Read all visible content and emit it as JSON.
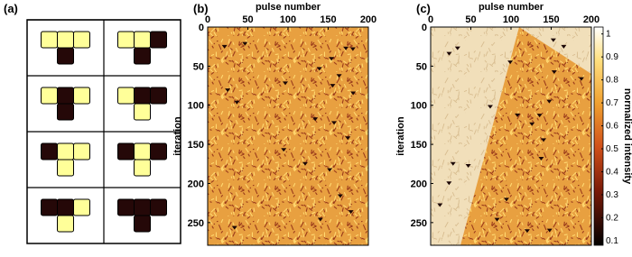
{
  "diagram": {
    "label": "(a)",
    "tiles": [
      [
        1,
        1,
        1,
        0
      ],
      [
        1,
        1,
        0,
        0
      ],
      [
        1,
        0,
        1,
        0
      ],
      [
        1,
        0,
        0,
        1
      ],
      [
        0,
        1,
        1,
        1
      ],
      [
        0,
        1,
        0,
        1
      ],
      [
        0,
        0,
        1,
        1
      ],
      [
        0,
        0,
        0,
        0
      ]
    ]
  },
  "chart_data": [
    {
      "type": "heatmap",
      "label": "(b)",
      "x_label": "pulse number",
      "y_label": "iteration",
      "xlim": [
        0,
        200
      ],
      "xticks": [
        0,
        50,
        100,
        150,
        200
      ],
      "ylim": [
        0,
        279
      ],
      "yticks": [
        0,
        50,
        100,
        150,
        200,
        250
      ]
    },
    {
      "type": "heatmap",
      "label": "(c)",
      "x_label": "pulse number",
      "y_label": "iteration",
      "xlim": [
        0,
        200
      ],
      "xticks": [
        0,
        50,
        100,
        150,
        200
      ],
      "ylim": [
        0,
        279
      ],
      "yticks": [
        0,
        50,
        100,
        150,
        200,
        250
      ],
      "colorbar": {
        "label": "normalized intensity",
        "clim": [
          0.08,
          1.03
        ],
        "ticks": [
          0.1,
          0.2,
          0.3,
          0.4,
          0.5,
          0.6,
          0.7,
          0.8,
          0.9,
          1
        ]
      }
    }
  ]
}
